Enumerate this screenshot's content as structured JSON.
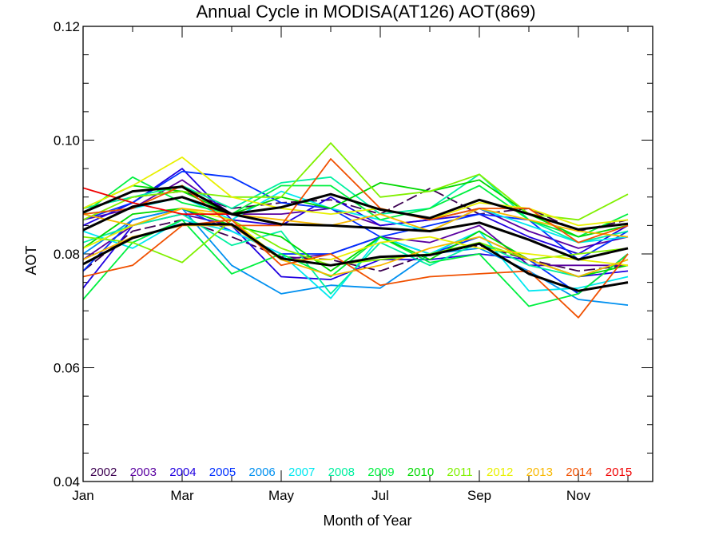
{
  "chart_data": {
    "type": "line",
    "title": "Annual Cycle in MODISA(AT126) AOT(869)",
    "xlabel": "Month of Year",
    "ylabel": "AOT",
    "xlim": [
      1,
      12.5
    ],
    "ylim": [
      0.04,
      0.12
    ],
    "x_ticks": [
      {
        "value": 1,
        "label": "Jan"
      },
      {
        "value": 3,
        "label": "Mar"
      },
      {
        "value": 5,
        "label": "May"
      },
      {
        "value": 7,
        "label": "Jul"
      },
      {
        "value": 9,
        "label": "Sep"
      },
      {
        "value": 11,
        "label": "Nov"
      }
    ],
    "y_ticks": [
      {
        "value": 0.04,
        "label": "0.04"
      },
      {
        "value": 0.06,
        "label": "0.06"
      },
      {
        "value": 0.08,
        "label": "0.08"
      },
      {
        "value": 0.1,
        "label": "0.10"
      },
      {
        "value": 0.12,
        "label": "0.12"
      }
    ],
    "y_minor_step": 0.005,
    "x": [
      1,
      2,
      3,
      4,
      5,
      6,
      7,
      8,
      9,
      10,
      11,
      12
    ],
    "legend_position": "bottom",
    "series": [
      {
        "name": "2002",
        "color": "#3c0050",
        "dashed": true,
        "lows": [
          0.077,
          0.084,
          0.086,
          0.083,
          0.0795,
          0.079,
          0.077,
          0.08,
          0.0815,
          0.079,
          0.077,
          0.078
        ],
        "highs": [
          0.088,
          0.09,
          0.091,
          0.088,
          0.089,
          0.0895,
          0.087,
          0.0915,
          0.087,
          0.088,
          0.084,
          0.086
        ]
      },
      {
        "name": "2003",
        "color": "#5a00a0",
        "lows": [
          0.079,
          0.085,
          0.087,
          0.085,
          0.079,
          0.08,
          0.083,
          0.082,
          0.085,
          0.078,
          0.078,
          0.078
        ],
        "highs": [
          0.086,
          0.088,
          0.093,
          0.087,
          0.087,
          0.088,
          0.085,
          0.086,
          0.088,
          0.084,
          0.081,
          0.083
        ]
      },
      {
        "name": "2004",
        "color": "#2000e0",
        "lows": [
          0.074,
          0.085,
          0.088,
          0.085,
          0.076,
          0.0755,
          0.079,
          0.079,
          0.08,
          0.079,
          0.076,
          0.077
        ],
        "highs": [
          0.085,
          0.089,
          0.095,
          0.086,
          0.085,
          0.09,
          0.085,
          0.086,
          0.087,
          0.083,
          0.08,
          0.085
        ]
      },
      {
        "name": "2005",
        "color": "#0030ff",
        "lows": [
          0.077,
          0.086,
          0.088,
          0.084,
          0.08,
          0.08,
          0.083,
          0.08,
          0.083,
          0.079,
          0.073,
          0.08
        ],
        "highs": [
          0.086,
          0.089,
          0.0945,
          0.0935,
          0.089,
          0.088,
          0.083,
          0.085,
          0.087,
          0.086,
          0.079,
          0.084
        ]
      },
      {
        "name": "2006",
        "color": "#0090f0",
        "lows": [
          0.08,
          0.086,
          0.088,
          0.078,
          0.073,
          0.0745,
          0.074,
          0.08,
          0.081,
          0.077,
          0.072,
          0.071
        ]
      },
      {
        "name": "2007",
        "color": "#00e8f0",
        "lows": [
          0.084,
          0.081,
          0.086,
          0.084,
          0.08,
          0.0722,
          0.083,
          0.08,
          0.084,
          0.0735,
          0.074,
          0.076
        ],
        "highs": [
          0.087,
          0.088,
          0.09,
          0.086,
          0.091,
          0.088,
          0.086,
          0.084,
          0.088,
          0.085,
          0.082,
          0.083
        ]
      },
      {
        "name": "2008",
        "color": "#00f0a0",
        "lows": [
          0.082,
          0.085,
          0.087,
          0.0815,
          0.084,
          0.073,
          0.082,
          0.078,
          0.082,
          0.078,
          0.076,
          0.079
        ],
        "highs": [
          0.088,
          0.09,
          0.092,
          0.088,
          0.0925,
          0.0935,
          0.087,
          0.088,
          0.094,
          0.086,
          0.082,
          0.084
        ]
      },
      {
        "name": "2009",
        "color": "#00f040",
        "lows": [
          0.072,
          0.082,
          0.086,
          0.0765,
          0.08,
          0.076,
          0.083,
          0.0785,
          0.08,
          0.0708,
          0.073,
          0.08
        ],
        "highs": [
          0.087,
          0.0935,
          0.089,
          0.087,
          0.092,
          0.092,
          0.086,
          0.088,
          0.092,
          0.086,
          0.083,
          0.087
        ]
      },
      {
        "name": "2010",
        "color": "#00d800",
        "lows": [
          0.081,
          0.087,
          0.088,
          0.085,
          0.083,
          0.077,
          0.083,
          0.079,
          0.084,
          0.079,
          0.076,
          0.078
        ],
        "highs": [
          0.088,
          0.092,
          0.091,
          0.087,
          0.09,
          0.088,
          0.0925,
          0.091,
          0.093,
          0.087,
          0.083,
          0.085
        ]
      },
      {
        "name": "2011",
        "color": "#80f000",
        "lows": [
          0.083,
          0.082,
          0.0785,
          0.086,
          0.081,
          0.078,
          0.079,
          0.08,
          0.082,
          0.079,
          0.08,
          0.081
        ],
        "highs": [
          0.086,
          0.09,
          0.091,
          0.09,
          0.09,
          0.0995,
          0.09,
          0.091,
          0.094,
          0.087,
          0.086,
          0.0905
        ]
      },
      {
        "name": "2012",
        "color": "#e8f000",
        "lows": [
          0.081,
          0.085,
          0.088,
          0.086,
          0.079,
          0.079,
          0.082,
          0.083,
          0.081,
          0.08,
          0.079,
          0.078
        ],
        "highs": [
          0.088,
          0.092,
          0.097,
          0.09,
          0.088,
          0.087,
          0.088,
          0.086,
          0.089,
          0.088,
          0.085,
          0.086
        ]
      },
      {
        "name": "2013",
        "color": "#f8b800",
        "lows": [
          0.079,
          0.083,
          0.085,
          0.085,
          0.079,
          0.0762,
          0.078,
          0.081,
          0.083,
          0.079,
          0.076,
          0.079
        ],
        "highs": [
          0.087,
          0.085,
          0.088,
          0.087,
          0.086,
          0.085,
          0.087,
          0.084,
          0.088,
          0.086,
          0.084,
          0.083
        ]
      },
      {
        "name": "2014",
        "color": "#f05000",
        "lows": [
          0.076,
          0.078,
          0.085,
          0.086,
          0.078,
          0.08,
          0.0745,
          0.076,
          0.0765,
          0.077,
          0.0688,
          0.08
        ],
        "highs": [
          0.087,
          0.088,
          0.092,
          0.085,
          0.085,
          0.0967,
          0.088,
          0.086,
          0.088,
          0.088,
          0.082,
          0.085
        ]
      },
      {
        "name": "2015",
        "color": "#f00000",
        "lows": [
          0.0916,
          0.089,
          0.087,
          0.087
        ]
      },
      {
        "name": "",
        "color": "#000000",
        "thick": true,
        "lows": [
          0.0782,
          0.0828,
          0.0852,
          0.0852,
          0.0792,
          0.078,
          0.0795,
          0.0798,
          0.0818,
          0.0765,
          0.0735,
          0.075
        ]
      },
      {
        "name": "",
        "color": "#000000",
        "thick": true,
        "lows": [
          0.0842,
          0.0883,
          0.09,
          0.087,
          0.0852,
          0.085,
          0.0845,
          0.084,
          0.0855,
          0.0825,
          0.079,
          0.081
        ]
      },
      {
        "name": "",
        "color": "#000000",
        "thick": true,
        "lows": [
          0.0873,
          0.091,
          0.0918,
          0.087,
          0.0882,
          0.0905,
          0.0878,
          0.0863,
          0.0895,
          0.087,
          0.0843,
          0.0853
        ]
      }
    ]
  }
}
